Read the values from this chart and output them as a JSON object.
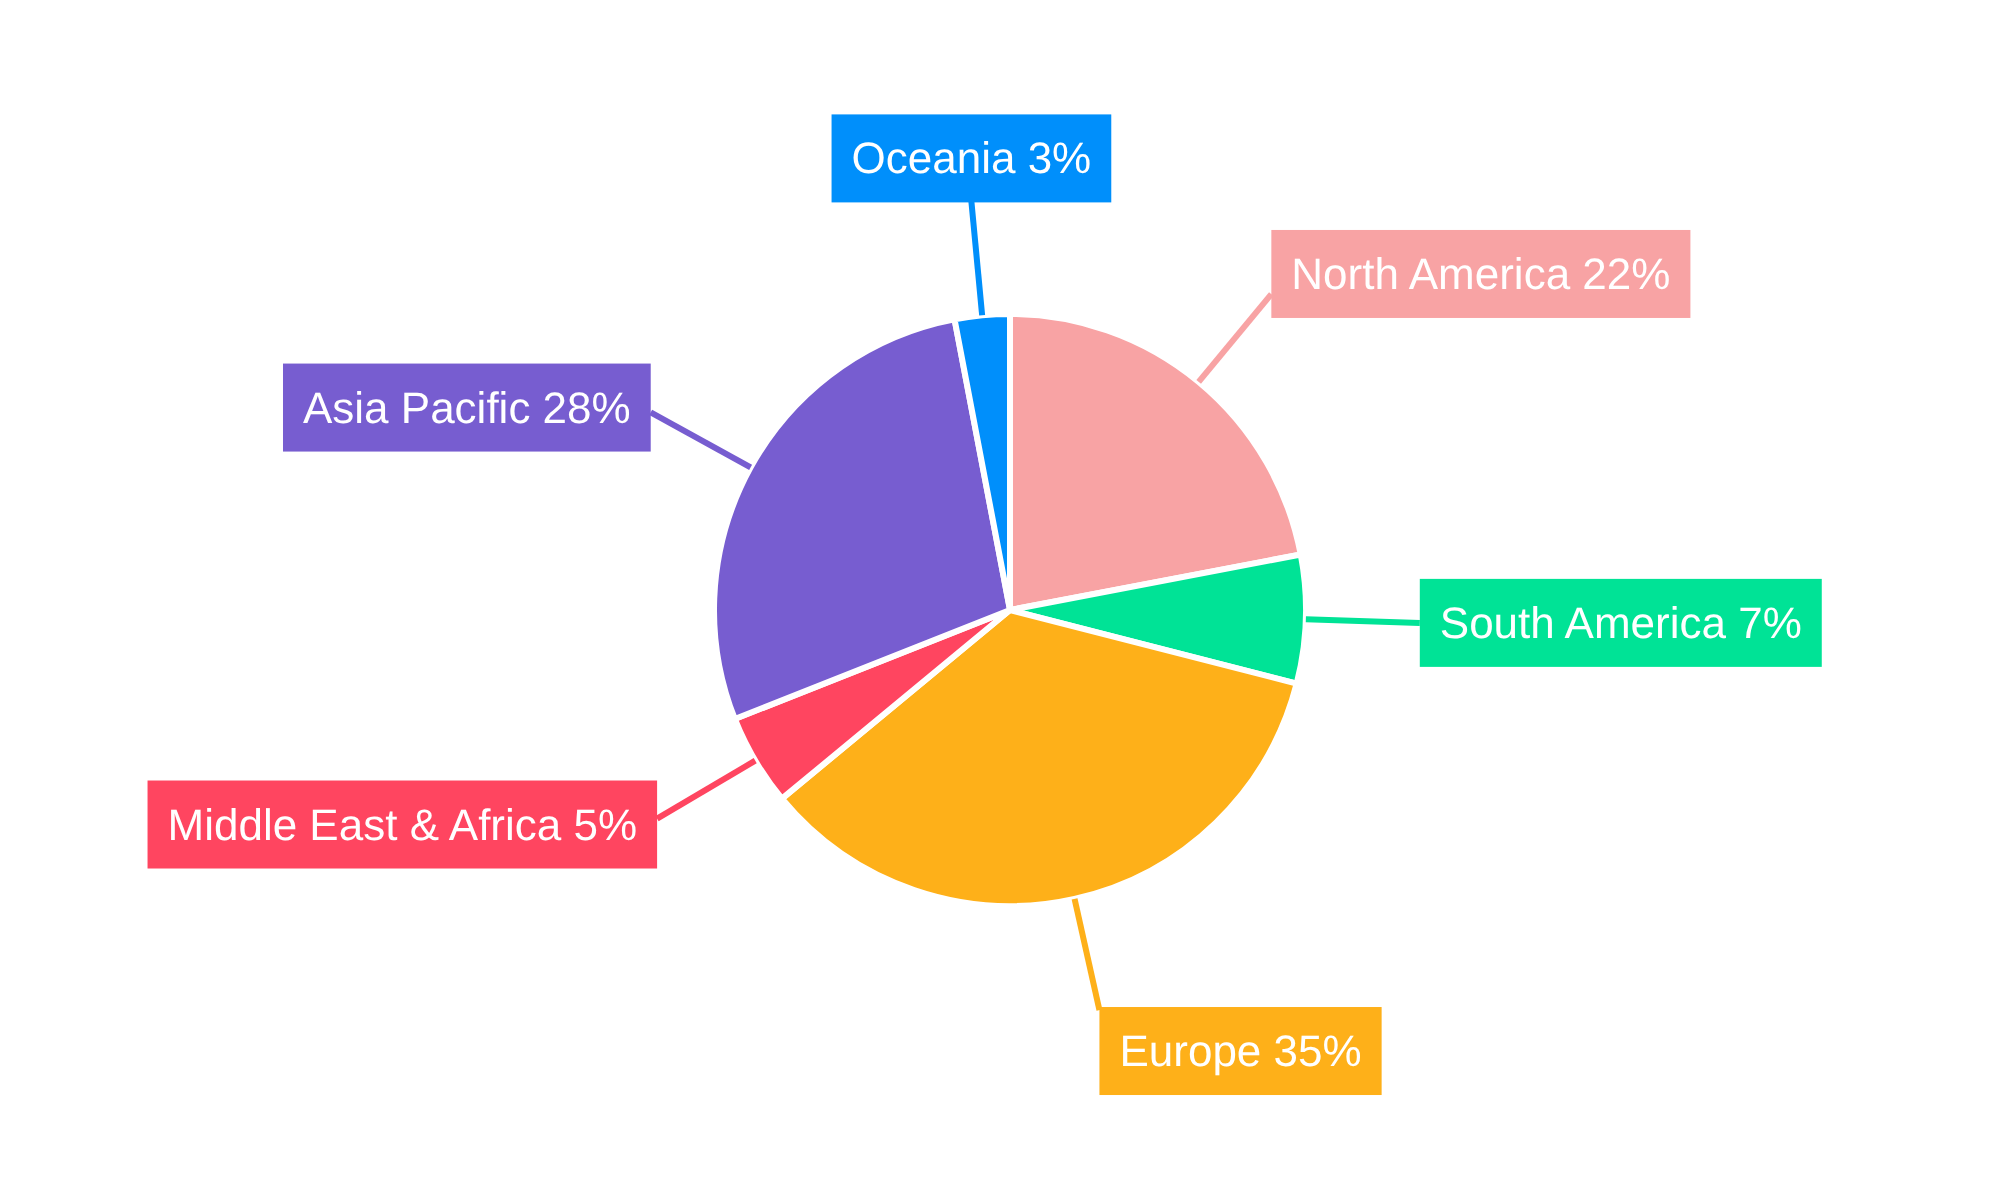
{
  "chart_data": {
    "type": "pie",
    "categories": [
      "North America",
      "South America",
      "Europe",
      "Middle East & Africa",
      "Asia Pacific",
      "Oceania"
    ],
    "values": [
      22,
      7,
      35,
      5,
      28,
      3
    ],
    "value_labels": [
      "22%",
      "7%",
      "35%",
      "5%",
      "28%",
      "3%"
    ],
    "colors": [
      "#f8a3a4",
      "#00e396",
      "#feb019",
      "#ff4560",
      "#775dd0",
      "#008ffb"
    ]
  }
}
